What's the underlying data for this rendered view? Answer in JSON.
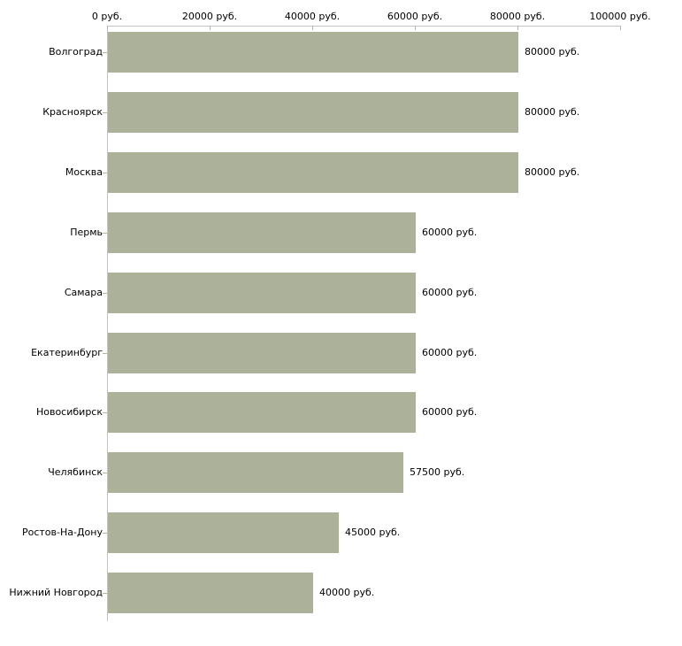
{
  "chart_data": {
    "type": "bar",
    "orientation": "horizontal",
    "title": "",
    "xlabel": "",
    "ylabel": "",
    "xlim": [
      0,
      100000
    ],
    "grid": false,
    "legend": null,
    "categories": [
      "Волгоград",
      "Красноярск",
      "Москва",
      "Пермь",
      "Самара",
      "Екатеринбург",
      "Новосибирск",
      "Челябинск",
      "Ростов-На-Дону",
      "Нижний Новгород"
    ],
    "values": [
      80000,
      80000,
      80000,
      60000,
      60000,
      60000,
      60000,
      57500,
      45000,
      40000
    ],
    "value_labels": [
      "80000 руб.",
      "80000 руб.",
      "80000 руб.",
      "60000 руб.",
      "60000 руб.",
      "60000 руб.",
      "60000 руб.",
      "57500 руб.",
      "45000 руб.",
      "40000 руб."
    ],
    "x_ticks": [
      {
        "value": 0,
        "label": "0 руб."
      },
      {
        "value": 20000,
        "label": "20000 руб."
      },
      {
        "value": 40000,
        "label": "40000 руб."
      },
      {
        "value": 60000,
        "label": "60000 руб."
      },
      {
        "value": 80000,
        "label": "80000 руб."
      },
      {
        "value": 100000,
        "label": "100000 руб."
      }
    ],
    "colors": {
      "bar": "#acb29a",
      "axis": "#c3c3c3",
      "tick": "#b2b88f",
      "text": "#000000",
      "background": "#ffffff"
    }
  }
}
